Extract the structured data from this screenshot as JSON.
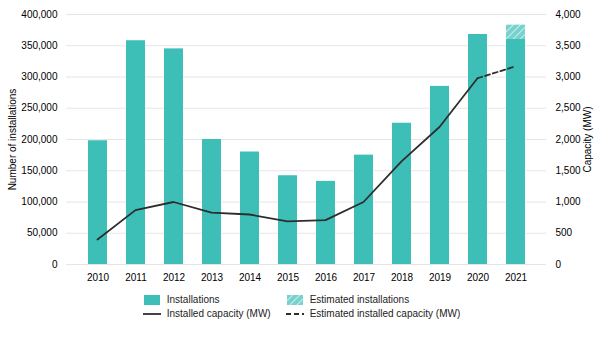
{
  "chart_data": {
    "type": "bar",
    "categories": [
      "2010",
      "2011",
      "2012",
      "2013",
      "2014",
      "2015",
      "2016",
      "2017",
      "2018",
      "2019",
      "2020",
      "2021"
    ],
    "series": [
      {
        "name": "Installations",
        "type": "bar",
        "color": "#3dbfb8",
        "values": [
          198000,
          358000,
          345000,
          200000,
          180000,
          142000,
          133000,
          175000,
          226000,
          285000,
          368000,
          360000
        ]
      },
      {
        "name": "Estimated installations",
        "type": "bar",
        "color": "#3dbfb8",
        "line_style": "hatched",
        "values": [
          null,
          null,
          null,
          null,
          null,
          null,
          null,
          null,
          null,
          null,
          null,
          23000
        ]
      },
      {
        "name": "Installed capacity (MW)",
        "type": "line",
        "axis": "y2",
        "color": "#2d2d2d",
        "line_style": "solid",
        "values": [
          400,
          870,
          1000,
          830,
          800,
          690,
          710,
          1000,
          1650,
          2200,
          2980,
          null
        ]
      },
      {
        "name": "Estimated installed capacity (MW)",
        "type": "line",
        "axis": "y2",
        "color": "#2d2d2d",
        "line_style": "dashed",
        "values": [
          null,
          null,
          null,
          null,
          null,
          null,
          null,
          null,
          null,
          null,
          2980,
          3170
        ]
      }
    ],
    "stacked": true,
    "ylabel": "Number of installations",
    "y2label": "Capacity (MW)",
    "ylim": [
      0,
      400000
    ],
    "yticks": [
      0,
      {
        "value": 50000,
        "label": "50,000"
      },
      {
        "value": 100000,
        "label": "100,000"
      },
      {
        "value": 150000,
        "label": "150,000"
      },
      {
        "value": 200000,
        "label": "200,000"
      },
      {
        "value": 250000,
        "label": "250,000"
      },
      {
        "value": 300000,
        "label": "300,000"
      },
      {
        "value": 350000,
        "label": "350,000"
      },
      {
        "value": 400000,
        "label": "400,000"
      }
    ],
    "y2lim": [
      0,
      4000
    ],
    "y2ticks": [
      0,
      500,
      {
        "value": 1000,
        "label": "1,000"
      },
      {
        "value": 1500,
        "label": "1,500"
      },
      {
        "value": 2000,
        "label": "2,000"
      },
      {
        "value": 2500,
        "label": "2,500"
      },
      {
        "value": 3000,
        "label": "3,000"
      },
      {
        "value": 3500,
        "label": "3,500"
      },
      {
        "value": 4000,
        "label": "4,000"
      }
    ],
    "grid": true,
    "legend": "bottom"
  }
}
